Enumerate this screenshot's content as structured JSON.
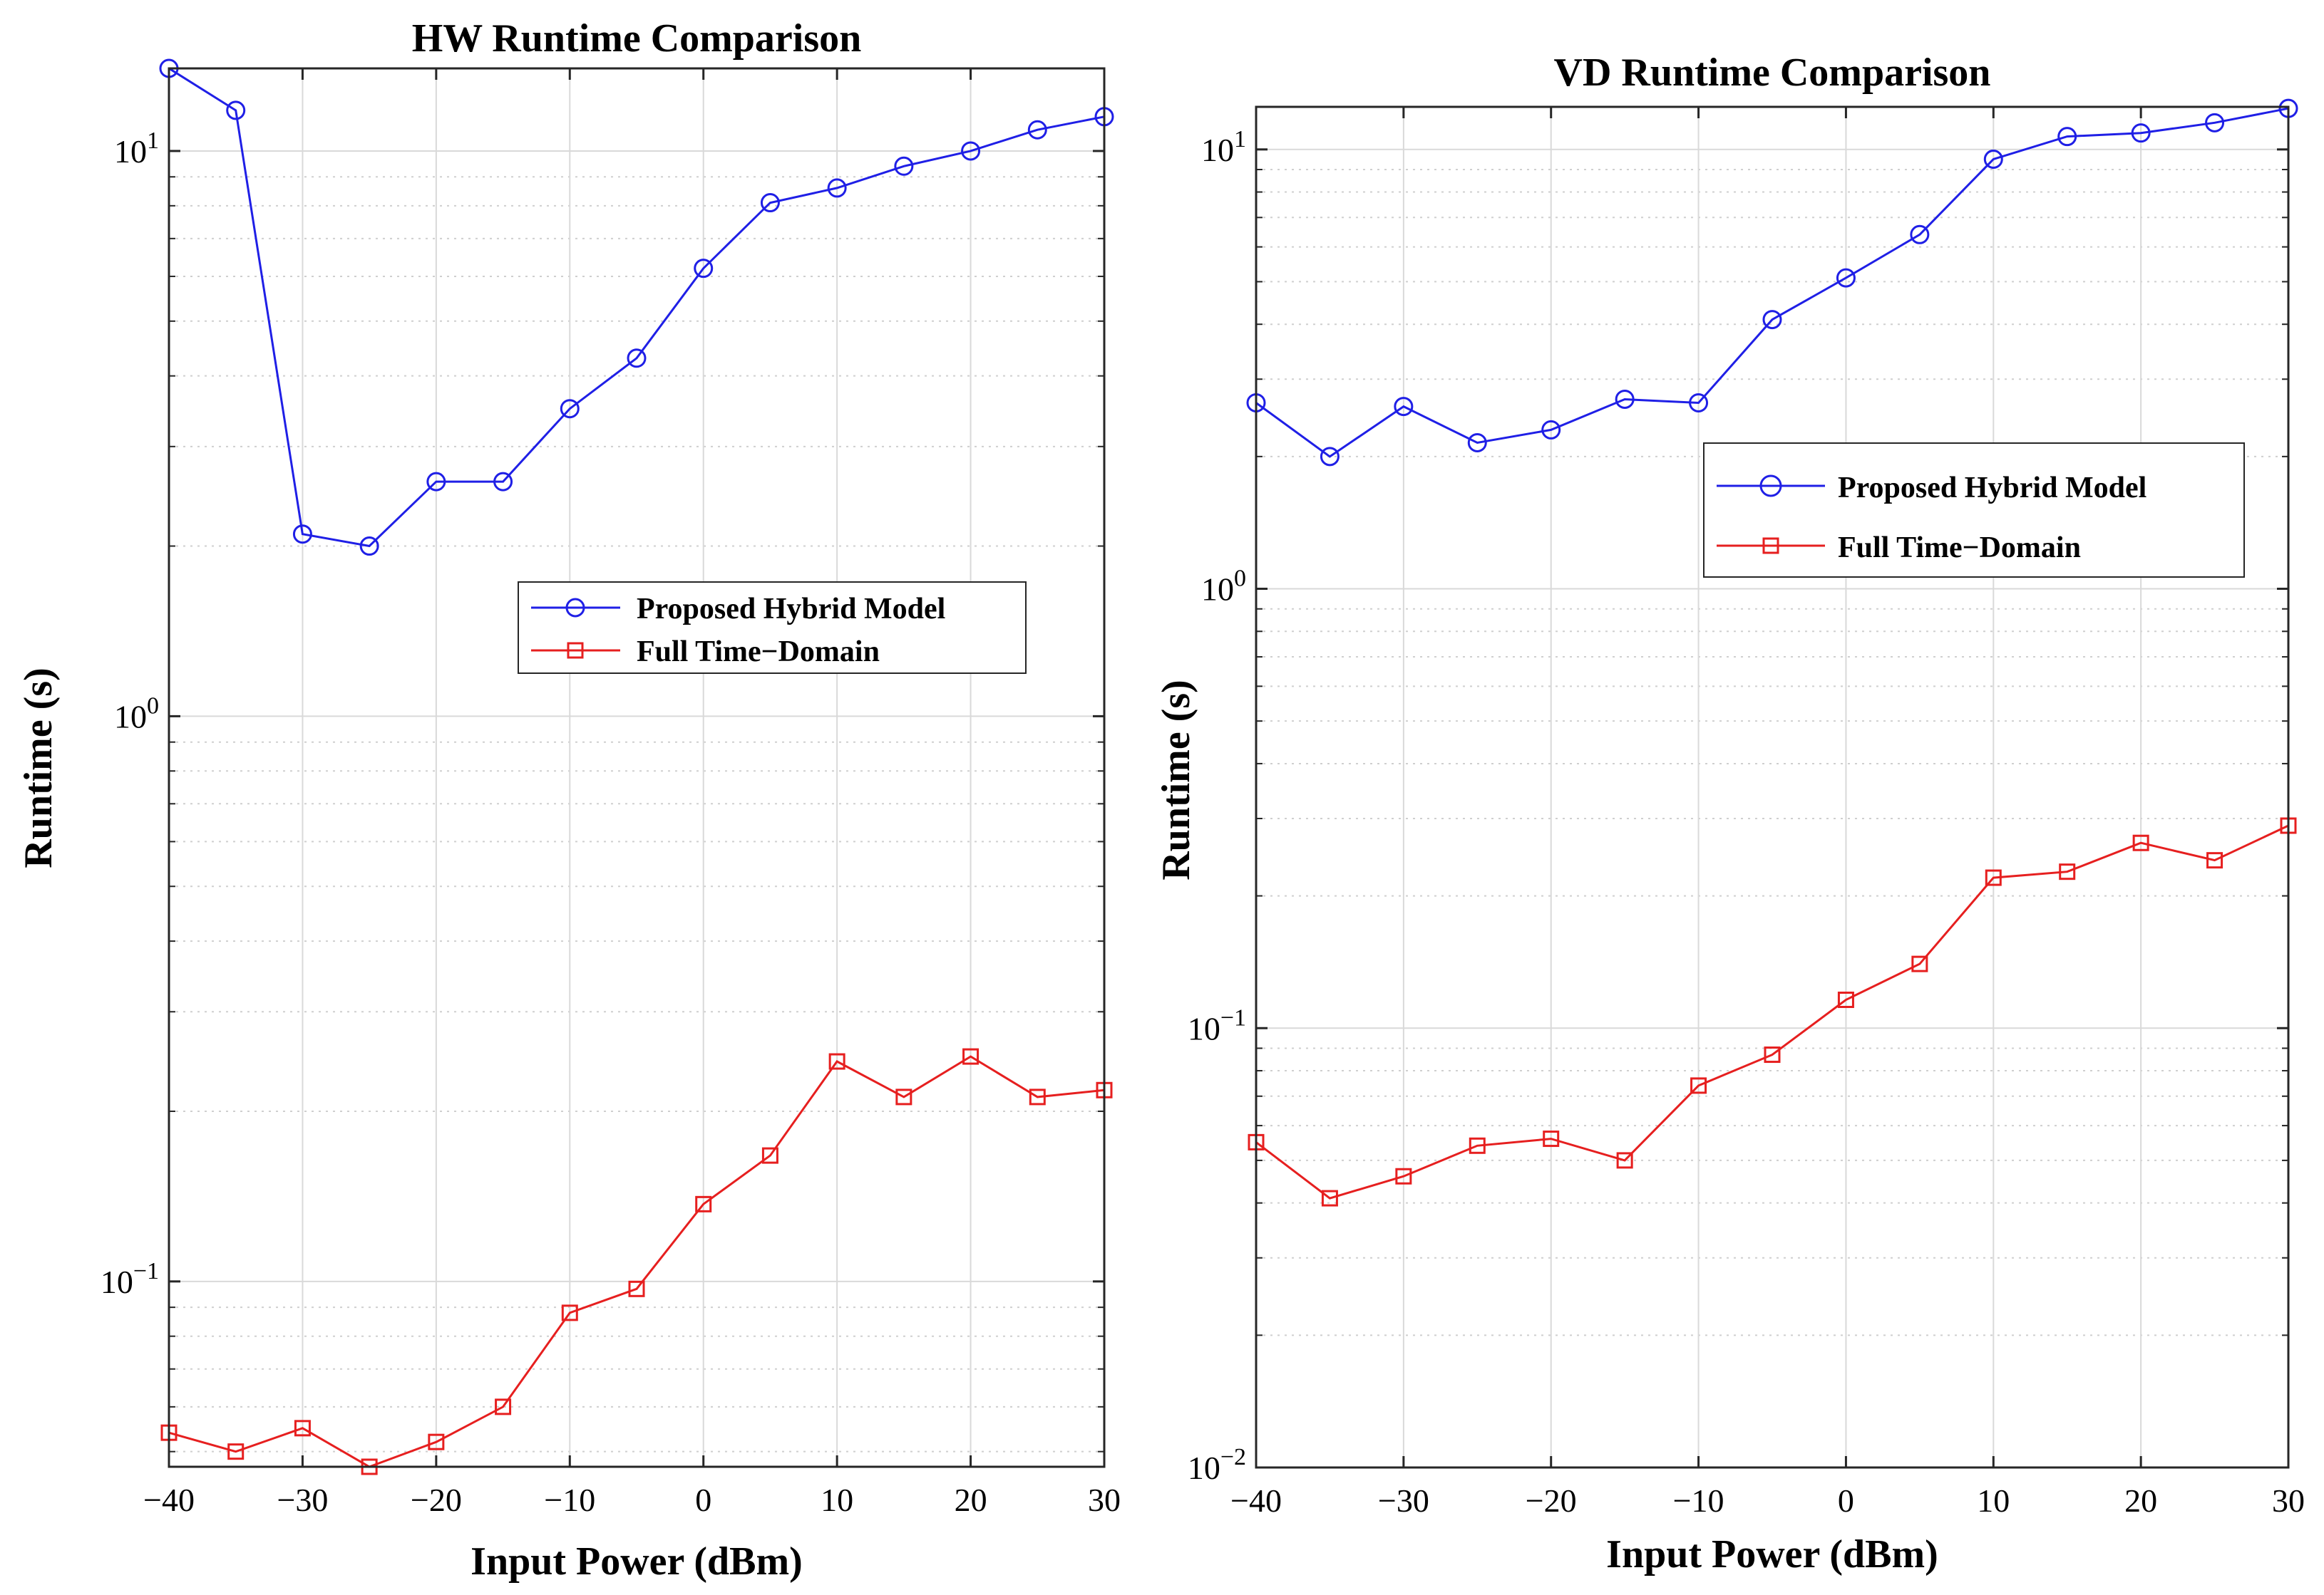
{
  "chart_data": [
    {
      "type": "line",
      "title": "HW Runtime Comparison",
      "xlabel": "Input Power (dBm)",
      "ylabel": "Runtime (s)",
      "yscale": "log",
      "xlim": [
        -40,
        30
      ],
      "ylim": [
        0.047,
        14
      ],
      "xticks": [
        -40,
        -30,
        -20,
        -10,
        0,
        10,
        20,
        30
      ],
      "xtick_labels": [
        "−40",
        "−30",
        "−20",
        "−10",
        "0",
        "10",
        "20",
        "30"
      ],
      "yticks": [
        {
          "value": 0.1,
          "base": "10",
          "exp": "−1"
        },
        {
          "value": 1,
          "base": "10",
          "exp": "0"
        },
        {
          "value": 10,
          "base": "10",
          "exp": "1"
        }
      ],
      "grid": true,
      "legend_position": "center-right",
      "x": [
        -40,
        -35,
        -30,
        -25,
        -20,
        -15,
        -10,
        -5,
        0,
        5,
        10,
        15,
        20,
        25,
        30
      ],
      "series": [
        {
          "name": "Proposed Hybrid Model",
          "color": "#1f1fe6",
          "marker": "circle",
          "values": [
            14,
            11.8,
            2.1,
            2.0,
            2.6,
            2.6,
            3.5,
            4.3,
            6.2,
            8.1,
            8.6,
            9.4,
            10.0,
            10.9,
            11.5
          ]
        },
        {
          "name": "Full Time−Domain",
          "color": "#e61f1f",
          "marker": "square",
          "values": [
            0.054,
            0.05,
            0.055,
            0.047,
            0.052,
            0.06,
            0.088,
            0.097,
            0.137,
            0.167,
            0.245,
            0.212,
            0.25,
            0.212,
            0.218
          ]
        }
      ]
    },
    {
      "type": "line",
      "title": "VD Runtime Comparison",
      "xlabel": "Input Power (dBm)",
      "ylabel": "Runtime (s)",
      "yscale": "log",
      "xlim": [
        -40,
        30
      ],
      "ylim": [
        0.01,
        12.5
      ],
      "xticks": [
        -40,
        -30,
        -20,
        -10,
        0,
        10,
        20,
        30
      ],
      "xtick_labels": [
        "−40",
        "−30",
        "−20",
        "−10",
        "0",
        "10",
        "20",
        "30"
      ],
      "yticks": [
        {
          "value": 0.01,
          "base": "10",
          "exp": "−2"
        },
        {
          "value": 0.1,
          "base": "10",
          "exp": "−1"
        },
        {
          "value": 1,
          "base": "10",
          "exp": "0"
        },
        {
          "value": 10,
          "base": "10",
          "exp": "1"
        }
      ],
      "grid": true,
      "legend_position": "upper-right",
      "x": [
        -40,
        -35,
        -30,
        -25,
        -20,
        -15,
        -10,
        -5,
        0,
        5,
        10,
        15,
        20,
        25,
        30
      ],
      "series": [
        {
          "name": "Proposed Hybrid Model",
          "color": "#1f1fe6",
          "marker": "circle",
          "values": [
            2.65,
            2.0,
            2.6,
            2.15,
            2.3,
            2.7,
            2.65,
            4.1,
            5.1,
            6.4,
            9.5,
            10.7,
            10.9,
            11.5,
            12.4
          ]
        },
        {
          "name": "Full Time−Domain",
          "color": "#e61f1f",
          "marker": "square",
          "values": [
            0.055,
            0.041,
            0.046,
            0.054,
            0.056,
            0.05,
            0.074,
            0.087,
            0.116,
            0.14,
            0.22,
            0.227,
            0.264,
            0.241,
            0.289
          ]
        }
      ]
    }
  ]
}
